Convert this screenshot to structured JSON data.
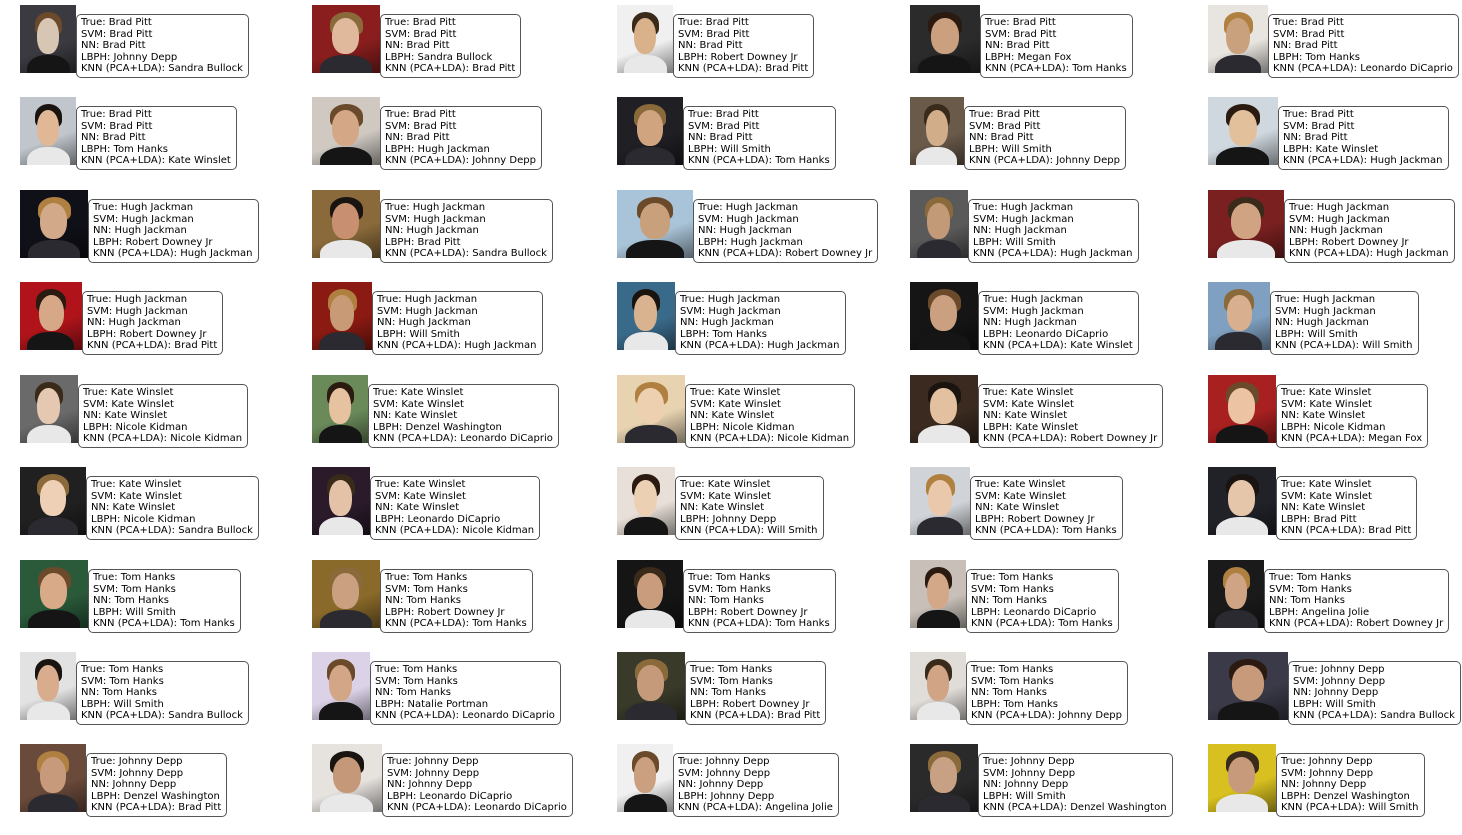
{
  "cells": [
    {
      "true": "True: Brad Pitt",
      "svm": "SVM: Brad Pitt",
      "nn": "NN: Brad Pitt",
      "lbph": "LBPH: Johnny Depp",
      "knn": "KNN (PCA+LDA): Sandra Bullock"
    },
    {
      "true": "True: Brad Pitt",
      "svm": "SVM: Brad Pitt",
      "nn": "NN: Brad Pitt",
      "lbph": "LBPH: Sandra Bullock",
      "knn": "KNN (PCA+LDA): Brad Pitt"
    },
    {
      "true": "True: Brad Pitt",
      "svm": "SVM: Brad Pitt",
      "nn": "NN: Brad Pitt",
      "lbph": "LBPH: Robert Downey Jr",
      "knn": "KNN (PCA+LDA): Brad Pitt"
    },
    {
      "true": "True: Brad Pitt",
      "svm": "SVM: Brad Pitt",
      "nn": "NN: Brad Pitt",
      "lbph": "LBPH: Megan Fox",
      "knn": "KNN (PCA+LDA): Tom Hanks"
    },
    {
      "true": "True: Brad Pitt",
      "svm": "SVM: Brad Pitt",
      "nn": "NN: Brad Pitt",
      "lbph": "LBPH: Tom Hanks",
      "knn": "KNN (PCA+LDA): Leonardo DiCaprio"
    },
    {
      "true": "True: Brad Pitt",
      "svm": "SVM: Brad Pitt",
      "nn": "NN: Brad Pitt",
      "lbph": "LBPH: Tom Hanks",
      "knn": "KNN (PCA+LDA): Kate Winslet"
    },
    {
      "true": "True: Brad Pitt",
      "svm": "SVM: Brad Pitt",
      "nn": "NN: Brad Pitt",
      "lbph": "LBPH: Hugh Jackman",
      "knn": "KNN (PCA+LDA): Johnny Depp"
    },
    {
      "true": "True: Brad Pitt",
      "svm": "SVM: Brad Pitt",
      "nn": "NN: Brad Pitt",
      "lbph": "LBPH: Will Smith",
      "knn": "KNN (PCA+LDA): Tom Hanks"
    },
    {
      "true": "True: Brad Pitt",
      "svm": "SVM: Brad Pitt",
      "nn": "NN: Brad Pitt",
      "lbph": "LBPH: Will Smith",
      "knn": "KNN (PCA+LDA): Johnny Depp"
    },
    {
      "true": "True: Brad Pitt",
      "svm": "SVM: Brad Pitt",
      "nn": "NN: Brad Pitt",
      "lbph": "LBPH: Kate Winslet",
      "knn": "KNN (PCA+LDA): Hugh Jackman"
    },
    {
      "true": "True: Hugh Jackman",
      "svm": "SVM: Hugh Jackman",
      "nn": "NN: Hugh Jackman",
      "lbph": "LBPH: Robert Downey Jr",
      "knn": "KNN (PCA+LDA): Hugh Jackman"
    },
    {
      "true": "True: Hugh Jackman",
      "svm": "SVM: Hugh Jackman",
      "nn": "NN: Hugh Jackman",
      "lbph": "LBPH: Brad Pitt",
      "knn": "KNN (PCA+LDA): Sandra Bullock"
    },
    {
      "true": "True: Hugh Jackman",
      "svm": "SVM: Hugh Jackman",
      "nn": "NN: Hugh Jackman",
      "lbph": "LBPH: Hugh Jackman",
      "knn": "KNN (PCA+LDA): Robert Downey Jr"
    },
    {
      "true": "True: Hugh Jackman",
      "svm": "SVM: Hugh Jackman",
      "nn": "NN: Hugh Jackman",
      "lbph": "LBPH: Will Smith",
      "knn": "KNN (PCA+LDA): Hugh Jackman"
    },
    {
      "true": "True: Hugh Jackman",
      "svm": "SVM: Hugh Jackman",
      "nn": "NN: Hugh Jackman",
      "lbph": "LBPH: Robert Downey Jr",
      "knn": "KNN (PCA+LDA): Hugh Jackman"
    },
    {
      "true": "True: Hugh Jackman",
      "svm": "SVM: Hugh Jackman",
      "nn": "NN: Hugh Jackman",
      "lbph": "LBPH: Robert Downey Jr",
      "knn": "KNN (PCA+LDA): Brad Pitt"
    },
    {
      "true": "True: Hugh Jackman",
      "svm": "SVM: Hugh Jackman",
      "nn": "NN: Hugh Jackman",
      "lbph": "LBPH: Will Smith",
      "knn": "KNN (PCA+LDA): Hugh Jackman"
    },
    {
      "true": "True: Hugh Jackman",
      "svm": "SVM: Hugh Jackman",
      "nn": "NN: Hugh Jackman",
      "lbph": "LBPH: Tom Hanks",
      "knn": "KNN (PCA+LDA): Hugh Jackman"
    },
    {
      "true": "True: Hugh Jackman",
      "svm": "SVM: Hugh Jackman",
      "nn": "NN: Hugh Jackman",
      "lbph": "LBPH: Leonardo DiCaprio",
      "knn": "KNN (PCA+LDA): Kate Winslet"
    },
    {
      "true": "True: Hugh Jackman",
      "svm": "SVM: Hugh Jackman",
      "nn": "NN: Hugh Jackman",
      "lbph": "LBPH: Will Smith",
      "knn": "KNN (PCA+LDA): Will Smith"
    },
    {
      "true": "True: Kate Winslet",
      "svm": "SVM: Kate Winslet",
      "nn": "NN: Kate Winslet",
      "lbph": "LBPH: Nicole Kidman",
      "knn": "KNN (PCA+LDA): Nicole Kidman"
    },
    {
      "true": "True: Kate Winslet",
      "svm": "SVM: Kate Winslet",
      "nn": "NN: Kate Winslet",
      "lbph": "LBPH: Denzel Washington",
      "knn": "KNN (PCA+LDA): Leonardo DiCaprio"
    },
    {
      "true": "True: Kate Winslet",
      "svm": "SVM: Kate Winslet",
      "nn": "NN: Kate Winslet",
      "lbph": "LBPH: Nicole Kidman",
      "knn": "KNN (PCA+LDA): Nicole Kidman"
    },
    {
      "true": "True: Kate Winslet",
      "svm": "SVM: Kate Winslet",
      "nn": "NN: Kate Winslet",
      "lbph": "LBPH: Kate Winslet",
      "knn": "KNN (PCA+LDA): Robert Downey Jr"
    },
    {
      "true": "True: Kate Winslet",
      "svm": "SVM: Kate Winslet",
      "nn": "NN: Kate Winslet",
      "lbph": "LBPH: Nicole Kidman",
      "knn": "KNN (PCA+LDA): Megan Fox"
    },
    {
      "true": "True: Kate Winslet",
      "svm": "SVM: Kate Winslet",
      "nn": "NN: Kate Winslet",
      "lbph": "LBPH: Nicole Kidman",
      "knn": "KNN (PCA+LDA): Sandra Bullock"
    },
    {
      "true": "True: Kate Winslet",
      "svm": "SVM: Kate Winslet",
      "nn": "NN: Kate Winslet",
      "lbph": "LBPH: Leonardo DiCaprio",
      "knn": "KNN (PCA+LDA): Nicole Kidman"
    },
    {
      "true": "True: Kate Winslet",
      "svm": "SVM: Kate Winslet",
      "nn": "NN: Kate Winslet",
      "lbph": "LBPH: Johnny Depp",
      "knn": "KNN (PCA+LDA): Will Smith"
    },
    {
      "true": "True: Kate Winslet",
      "svm": "SVM: Kate Winslet",
      "nn": "NN: Kate Winslet",
      "lbph": "LBPH: Robert Downey Jr",
      "knn": "KNN (PCA+LDA): Tom Hanks"
    },
    {
      "true": "True: Kate Winslet",
      "svm": "SVM: Kate Winslet",
      "nn": "NN: Kate Winslet",
      "lbph": "LBPH: Brad Pitt",
      "knn": "KNN (PCA+LDA): Brad Pitt"
    },
    {
      "true": "True: Tom Hanks",
      "svm": "SVM: Tom Hanks",
      "nn": "NN: Tom Hanks",
      "lbph": "LBPH: Will Smith",
      "knn": "KNN (PCA+LDA): Tom Hanks"
    },
    {
      "true": "True: Tom Hanks",
      "svm": "SVM: Tom Hanks",
      "nn": "NN: Tom Hanks",
      "lbph": "LBPH: Robert Downey Jr",
      "knn": "KNN (PCA+LDA): Tom Hanks"
    },
    {
      "true": "True: Tom Hanks",
      "svm": "SVM: Tom Hanks",
      "nn": "NN: Tom Hanks",
      "lbph": "LBPH: Robert Downey Jr",
      "knn": "KNN (PCA+LDA): Tom Hanks"
    },
    {
      "true": "True: Tom Hanks",
      "svm": "SVM: Tom Hanks",
      "nn": "NN: Tom Hanks",
      "lbph": "LBPH: Leonardo DiCaprio",
      "knn": "KNN (PCA+LDA): Tom Hanks"
    },
    {
      "true": "True: Tom Hanks",
      "svm": "SVM: Tom Hanks",
      "nn": "NN: Tom Hanks",
      "lbph": "LBPH: Angelina Jolie",
      "knn": "KNN (PCA+LDA): Robert Downey Jr"
    },
    {
      "true": "True: Tom Hanks",
      "svm": "SVM: Tom Hanks",
      "nn": "NN: Tom Hanks",
      "lbph": "LBPH: Will Smith",
      "knn": "KNN (PCA+LDA): Sandra Bullock"
    },
    {
      "true": "True: Tom Hanks",
      "svm": "SVM: Tom Hanks",
      "nn": "NN: Tom Hanks",
      "lbph": "LBPH: Natalie Portman",
      "knn": "KNN (PCA+LDA): Leonardo DiCaprio"
    },
    {
      "true": "True: Tom Hanks",
      "svm": "SVM: Tom Hanks",
      "nn": "NN: Tom Hanks",
      "lbph": "LBPH: Robert Downey Jr",
      "knn": "KNN (PCA+LDA): Brad Pitt"
    },
    {
      "true": "True: Tom Hanks",
      "svm": "SVM: Tom Hanks",
      "nn": "NN: Tom Hanks",
      "lbph": "LBPH: Tom Hanks",
      "knn": "KNN (PCA+LDA): Johnny Depp"
    },
    {
      "true": "True: Johnny Depp",
      "svm": "SVM: Johnny Depp",
      "nn": "NN: Johnny Depp",
      "lbph": "LBPH: Will Smith",
      "knn": "KNN (PCA+LDA): Sandra Bullock"
    },
    {
      "true": "True: Johnny Depp",
      "svm": "SVM: Johnny Depp",
      "nn": "NN: Johnny Depp",
      "lbph": "LBPH: Denzel Washington",
      "knn": "KNN (PCA+LDA): Brad Pitt"
    },
    {
      "true": "True: Johnny Depp",
      "svm": "SVM: Johnny Depp",
      "nn": "NN: Johnny Depp",
      "lbph": "LBPH: Leonardo DiCaprio",
      "knn": "KNN (PCA+LDA): Leonardo DiCaprio"
    },
    {
      "true": "True: Johnny Depp",
      "svm": "SVM: Johnny Depp",
      "nn": "NN: Johnny Depp",
      "lbph": "LBPH: Johnny Depp",
      "knn": "KNN (PCA+LDA): Angelina Jolie"
    },
    {
      "true": "True: Johnny Depp",
      "svm": "SVM: Johnny Depp",
      "nn": "NN: Johnny Depp",
      "lbph": "LBPH: Will Smith",
      "knn": "KNN (PCA+LDA): Denzel Washington"
    },
    {
      "true": "True: Johnny Depp",
      "svm": "SVM: Johnny Depp",
      "nn": "NN: Johnny Depp",
      "lbph": "LBPH: Denzel Washington",
      "knn": "KNN (PCA+LDA): Will Smith"
    }
  ]
}
